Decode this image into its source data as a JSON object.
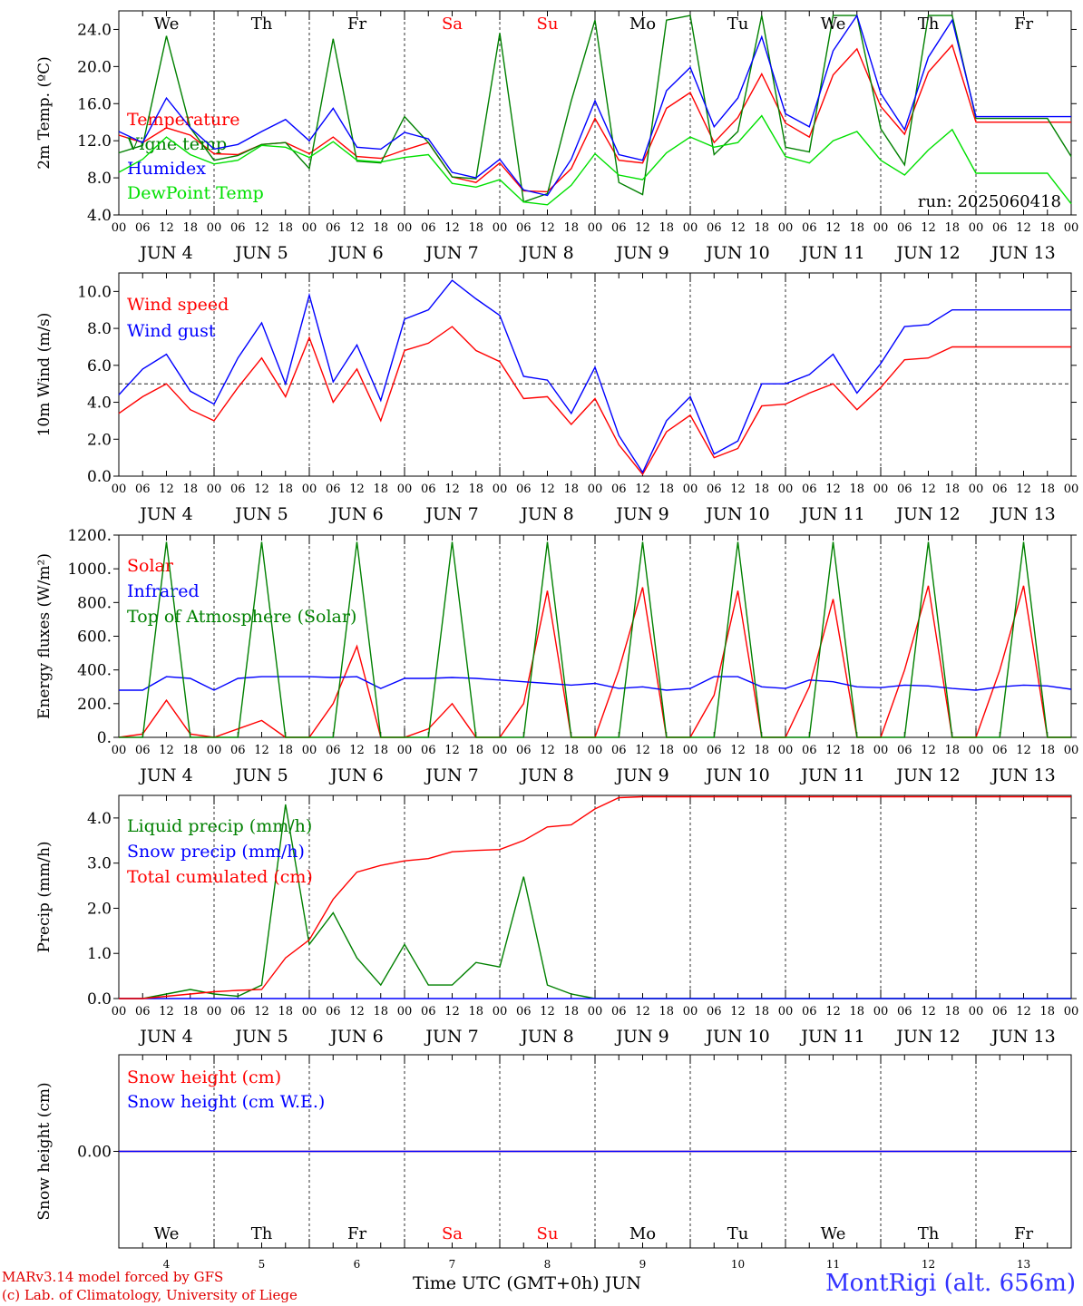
{
  "days": [
    "We",
    "Th",
    "Fr",
    "Sa",
    "Su",
    "Mo",
    "Tu",
    "We",
    "Th",
    "Fr"
  ],
  "weekend_color": "#ff0000",
  "date_labels": [
    "JUN  4",
    "JUN  5",
    "JUN  6",
    "JUN  7",
    "JUN  8",
    "JUN  9",
    "JUN 10",
    "JUN 11",
    "JUN 12",
    "JUN 13"
  ],
  "hour_ticks": [
    "00",
    "06",
    "12",
    "18"
  ],
  "bottom_day_numbers": [
    "4",
    "5",
    "6",
    "7",
    "8",
    "9",
    "10",
    "11",
    "12",
    "13"
  ],
  "footer": {
    "model": "MARv3.14 model forced by GFS",
    "lab": "(c) Lab. of Climatology, University of Liege",
    "xlabel": "Time UTC (GMT+0h) JUN",
    "station": "MontRigi (alt. 656m)"
  },
  "chart_data": [
    {
      "type": "line",
      "ylabel": "2m Temp. (ºC)",
      "ylim": [
        4,
        26
      ],
      "yticks": [
        "4.0",
        "8.0",
        "12.0",
        "16.0",
        "20.0",
        "24.0"
      ],
      "run_label": "run: 2025060418",
      "x_hours": [
        0,
        6,
        12,
        18,
        24,
        30,
        36,
        42,
        48,
        54,
        60,
        66,
        72,
        78,
        84,
        90,
        96,
        102,
        108,
        114,
        120,
        126,
        132,
        138,
        144,
        150,
        156,
        162,
        168,
        174,
        180,
        186,
        192,
        198,
        204,
        210,
        216,
        222,
        228,
        234,
        240
      ],
      "series": [
        {
          "name": "Temperature",
          "color": "#ff0000",
          "values": [
            12.6,
            11.8,
            13.4,
            12.6,
            10.6,
            10.5,
            11.6,
            11.8,
            10.6,
            12.4,
            10.3,
            10.1,
            11.0,
            11.8,
            8.1,
            7.5,
            9.6,
            6.6,
            6.5,
            9.0,
            14.4,
            9.9,
            9.6,
            15.5,
            17.2,
            11.8,
            14.5,
            19.2,
            13.9,
            12.4,
            19.1,
            21.9,
            15.7,
            12.7,
            19.4,
            22.3,
            14.0,
            14.0,
            14.0,
            14.0,
            14.0
          ]
        },
        {
          "name": "Vigne temp",
          "color": "#008000",
          "values": [
            10.7,
            11.5,
            23.3,
            13.4,
            9.9,
            10.4,
            11.6,
            11.8,
            9.0,
            23.0,
            9.8,
            9.6,
            14.6,
            11.8,
            8.1,
            7.9,
            23.6,
            5.4,
            6.3,
            16.3,
            25.0,
            7.5,
            6.2,
            25.0,
            25.5,
            10.5,
            13.0,
            25.5,
            11.3,
            10.8,
            25.5,
            25.5,
            13.3,
            9.4,
            25.5,
            25.5,
            14.4,
            14.4,
            14.4,
            14.4,
            10.3
          ]
        },
        {
          "name": "Humidex",
          "color": "#0000ff",
          "values": [
            13.0,
            11.8,
            16.6,
            13.4,
            11.1,
            11.6,
            13.0,
            14.3,
            12.0,
            15.5,
            11.3,
            11.1,
            12.9,
            12.2,
            8.6,
            8.0,
            10.0,
            6.7,
            6.1,
            10.0,
            16.3,
            10.5,
            9.9,
            17.4,
            19.9,
            13.5,
            16.6,
            23.2,
            14.9,
            13.5,
            21.7,
            25.5,
            17.1,
            13.2,
            21.0,
            25.0,
            14.6,
            14.6,
            14.6,
            14.6,
            14.6
          ]
        },
        {
          "name": "DewPoint Temp",
          "color": "#00e000",
          "values": [
            8.6,
            10.0,
            12.4,
            10.5,
            9.5,
            9.9,
            11.5,
            11.3,
            10.2,
            11.9,
            9.9,
            9.7,
            10.2,
            10.5,
            7.4,
            7.0,
            7.8,
            5.4,
            5.1,
            7.2,
            10.6,
            8.3,
            7.8,
            10.7,
            12.4,
            11.3,
            11.8,
            14.7,
            10.3,
            9.6,
            12.0,
            13.0,
            9.9,
            8.3,
            11.0,
            13.2,
            8.5,
            8.5,
            8.5,
            8.5,
            5.2
          ]
        }
      ]
    },
    {
      "type": "line",
      "ylabel": "10m Wind (m/s)",
      "ylim": [
        0,
        11
      ],
      "yticks": [
        "0.0",
        "2.0",
        "4.0",
        "6.0",
        "8.0",
        "10.0"
      ],
      "reference_line": 5.0,
      "x_hours": [
        0,
        6,
        12,
        18,
        24,
        30,
        36,
        42,
        48,
        54,
        60,
        66,
        72,
        78,
        84,
        90,
        96,
        102,
        108,
        114,
        120,
        126,
        132,
        138,
        144,
        150,
        156,
        162,
        168,
        174,
        180,
        186,
        192,
        198,
        204,
        210,
        216,
        222,
        228,
        234,
        240
      ],
      "series": [
        {
          "name": "Wind speed",
          "color": "#ff0000",
          "values": [
            3.4,
            4.3,
            5.0,
            3.6,
            3.0,
            4.8,
            6.4,
            4.3,
            7.5,
            4.0,
            5.8,
            3.0,
            6.8,
            7.2,
            8.1,
            6.8,
            6.2,
            4.2,
            4.3,
            2.8,
            4.2,
            1.7,
            0.1,
            2.4,
            3.3,
            1.0,
            1.5,
            3.8,
            3.9,
            4.5,
            5.0,
            3.6,
            4.8,
            6.3,
            6.4,
            7.0,
            7.0,
            7.0,
            7.0,
            7.0,
            7.0
          ]
        },
        {
          "name": "Wind gust",
          "color": "#0000ff",
          "values": [
            4.4,
            5.8,
            6.6,
            4.6,
            3.9,
            6.4,
            8.3,
            5.0,
            9.8,
            5.1,
            7.1,
            4.1,
            8.5,
            9.0,
            10.6,
            9.6,
            8.7,
            5.4,
            5.2,
            3.4,
            5.9,
            2.2,
            0.2,
            3.0,
            4.3,
            1.2,
            1.9,
            5.0,
            5.0,
            5.5,
            6.6,
            4.5,
            6.1,
            8.1,
            8.2,
            9.0,
            9.0,
            9.0,
            9.0,
            9.0,
            9.0
          ]
        }
      ]
    },
    {
      "type": "line",
      "ylabel": "Energy fluxes (W/m²)",
      "ylim": [
        0,
        1200
      ],
      "yticks": [
        "0.",
        "200.",
        "400.",
        "600.",
        "800.",
        "1000.",
        "1200."
      ],
      "x_hours": [
        0,
        6,
        12,
        18,
        24,
        30,
        36,
        42,
        48,
        54,
        60,
        66,
        72,
        78,
        84,
        90,
        96,
        102,
        108,
        114,
        120,
        126,
        132,
        138,
        144,
        150,
        156,
        162,
        168,
        174,
        180,
        186,
        192,
        198,
        204,
        210,
        216,
        222,
        228,
        234,
        240
      ],
      "series": [
        {
          "name": "Solar",
          "color": "#ff0000",
          "values": [
            0,
            20,
            220,
            20,
            0,
            50,
            100,
            0,
            0,
            200,
            540,
            0,
            0,
            50,
            200,
            0,
            0,
            200,
            870,
            0,
            0,
            400,
            890,
            0,
            0,
            250,
            870,
            0,
            0,
            300,
            820,
            0,
            0,
            400,
            900,
            0,
            0,
            400,
            900,
            0,
            0
          ]
        },
        {
          "name": "Infrared",
          "color": "#0000ff",
          "values": [
            280,
            280,
            360,
            350,
            280,
            350,
            360,
            360,
            360,
            355,
            360,
            290,
            350,
            350,
            355,
            350,
            340,
            330,
            320,
            310,
            320,
            290,
            300,
            280,
            290,
            360,
            360,
            300,
            290,
            340,
            330,
            300,
            295,
            310,
            305,
            290,
            280,
            300,
            310,
            305,
            285
          ]
        },
        {
          "name": "Top of Atmosphere (Solar)",
          "color": "#008000",
          "values": [
            0,
            0,
            1160,
            0,
            0,
            0,
            1160,
            0,
            0,
            0,
            1160,
            0,
            0,
            0,
            1160,
            0,
            0,
            0,
            1160,
            0,
            0,
            0,
            1160,
            0,
            0,
            0,
            1160,
            0,
            0,
            0,
            1160,
            0,
            0,
            0,
            1160,
            0,
            0,
            0,
            1160,
            0,
            0
          ]
        }
      ]
    },
    {
      "type": "line",
      "ylabel": "Precip (mm/h)",
      "ylim": [
        0,
        4.5
      ],
      "yticks": [
        "0.0",
        "1.0",
        "2.0",
        "3.0",
        "4.0"
      ],
      "x_hours": [
        0,
        6,
        12,
        18,
        24,
        30,
        36,
        42,
        48,
        54,
        60,
        66,
        72,
        78,
        84,
        90,
        96,
        102,
        108,
        114,
        120,
        126,
        132,
        138,
        144,
        150,
        156,
        162,
        168,
        174,
        180,
        186,
        192,
        198,
        204,
        210,
        216,
        222,
        228,
        234,
        240
      ],
      "series": [
        {
          "name": "Liquid precip (mm/h)",
          "color": "#008000",
          "values": [
            0,
            0,
            0.1,
            0.2,
            0.1,
            0.05,
            0.3,
            4.3,
            1.2,
            1.9,
            0.9,
            0.3,
            1.2,
            0.3,
            0.3,
            0.8,
            0.7,
            2.7,
            0.3,
            0.1,
            0,
            0,
            0,
            0,
            0,
            0,
            0,
            0,
            0,
            0,
            0,
            0,
            0,
            0,
            0,
            0,
            0,
            0,
            0,
            0,
            0
          ]
        },
        {
          "name": "Snow precip (mm/h)",
          "color": "#0000ff",
          "values": [
            0,
            0,
            0,
            0,
            0,
            0,
            0,
            0,
            0,
            0,
            0,
            0,
            0,
            0,
            0,
            0,
            0,
            0,
            0,
            0,
            0,
            0,
            0,
            0,
            0,
            0,
            0,
            0,
            0,
            0,
            0,
            0,
            0,
            0,
            0,
            0,
            0,
            0,
            0,
            0,
            0
          ]
        },
        {
          "name": "Total cumulated (cm)",
          "color": "#ff0000",
          "values": [
            0,
            0,
            0.05,
            0.1,
            0.15,
            0.18,
            0.2,
            0.9,
            1.3,
            2.2,
            2.8,
            2.95,
            3.05,
            3.1,
            3.25,
            3.28,
            3.3,
            3.5,
            3.8,
            3.85,
            4.2,
            4.45,
            4.47,
            4.47,
            4.47,
            4.47,
            4.47,
            4.47,
            4.47,
            4.47,
            4.47,
            4.47,
            4.47,
            4.47,
            4.47,
            4.47,
            4.47,
            4.47,
            4.47,
            4.47,
            4.47
          ]
        }
      ]
    },
    {
      "type": "line",
      "ylabel": "Snow height (cm)",
      "ylim": [
        -1,
        1
      ],
      "yticks": [
        "0.00"
      ],
      "x_hours": [
        0,
        240
      ],
      "series": [
        {
          "name": "Snow height (cm)",
          "color": "#ff0000",
          "values": [
            0,
            0
          ]
        },
        {
          "name": "Snow height (cm W.E.)",
          "color": "#0000ff",
          "values": [
            0,
            0
          ]
        }
      ]
    }
  ]
}
